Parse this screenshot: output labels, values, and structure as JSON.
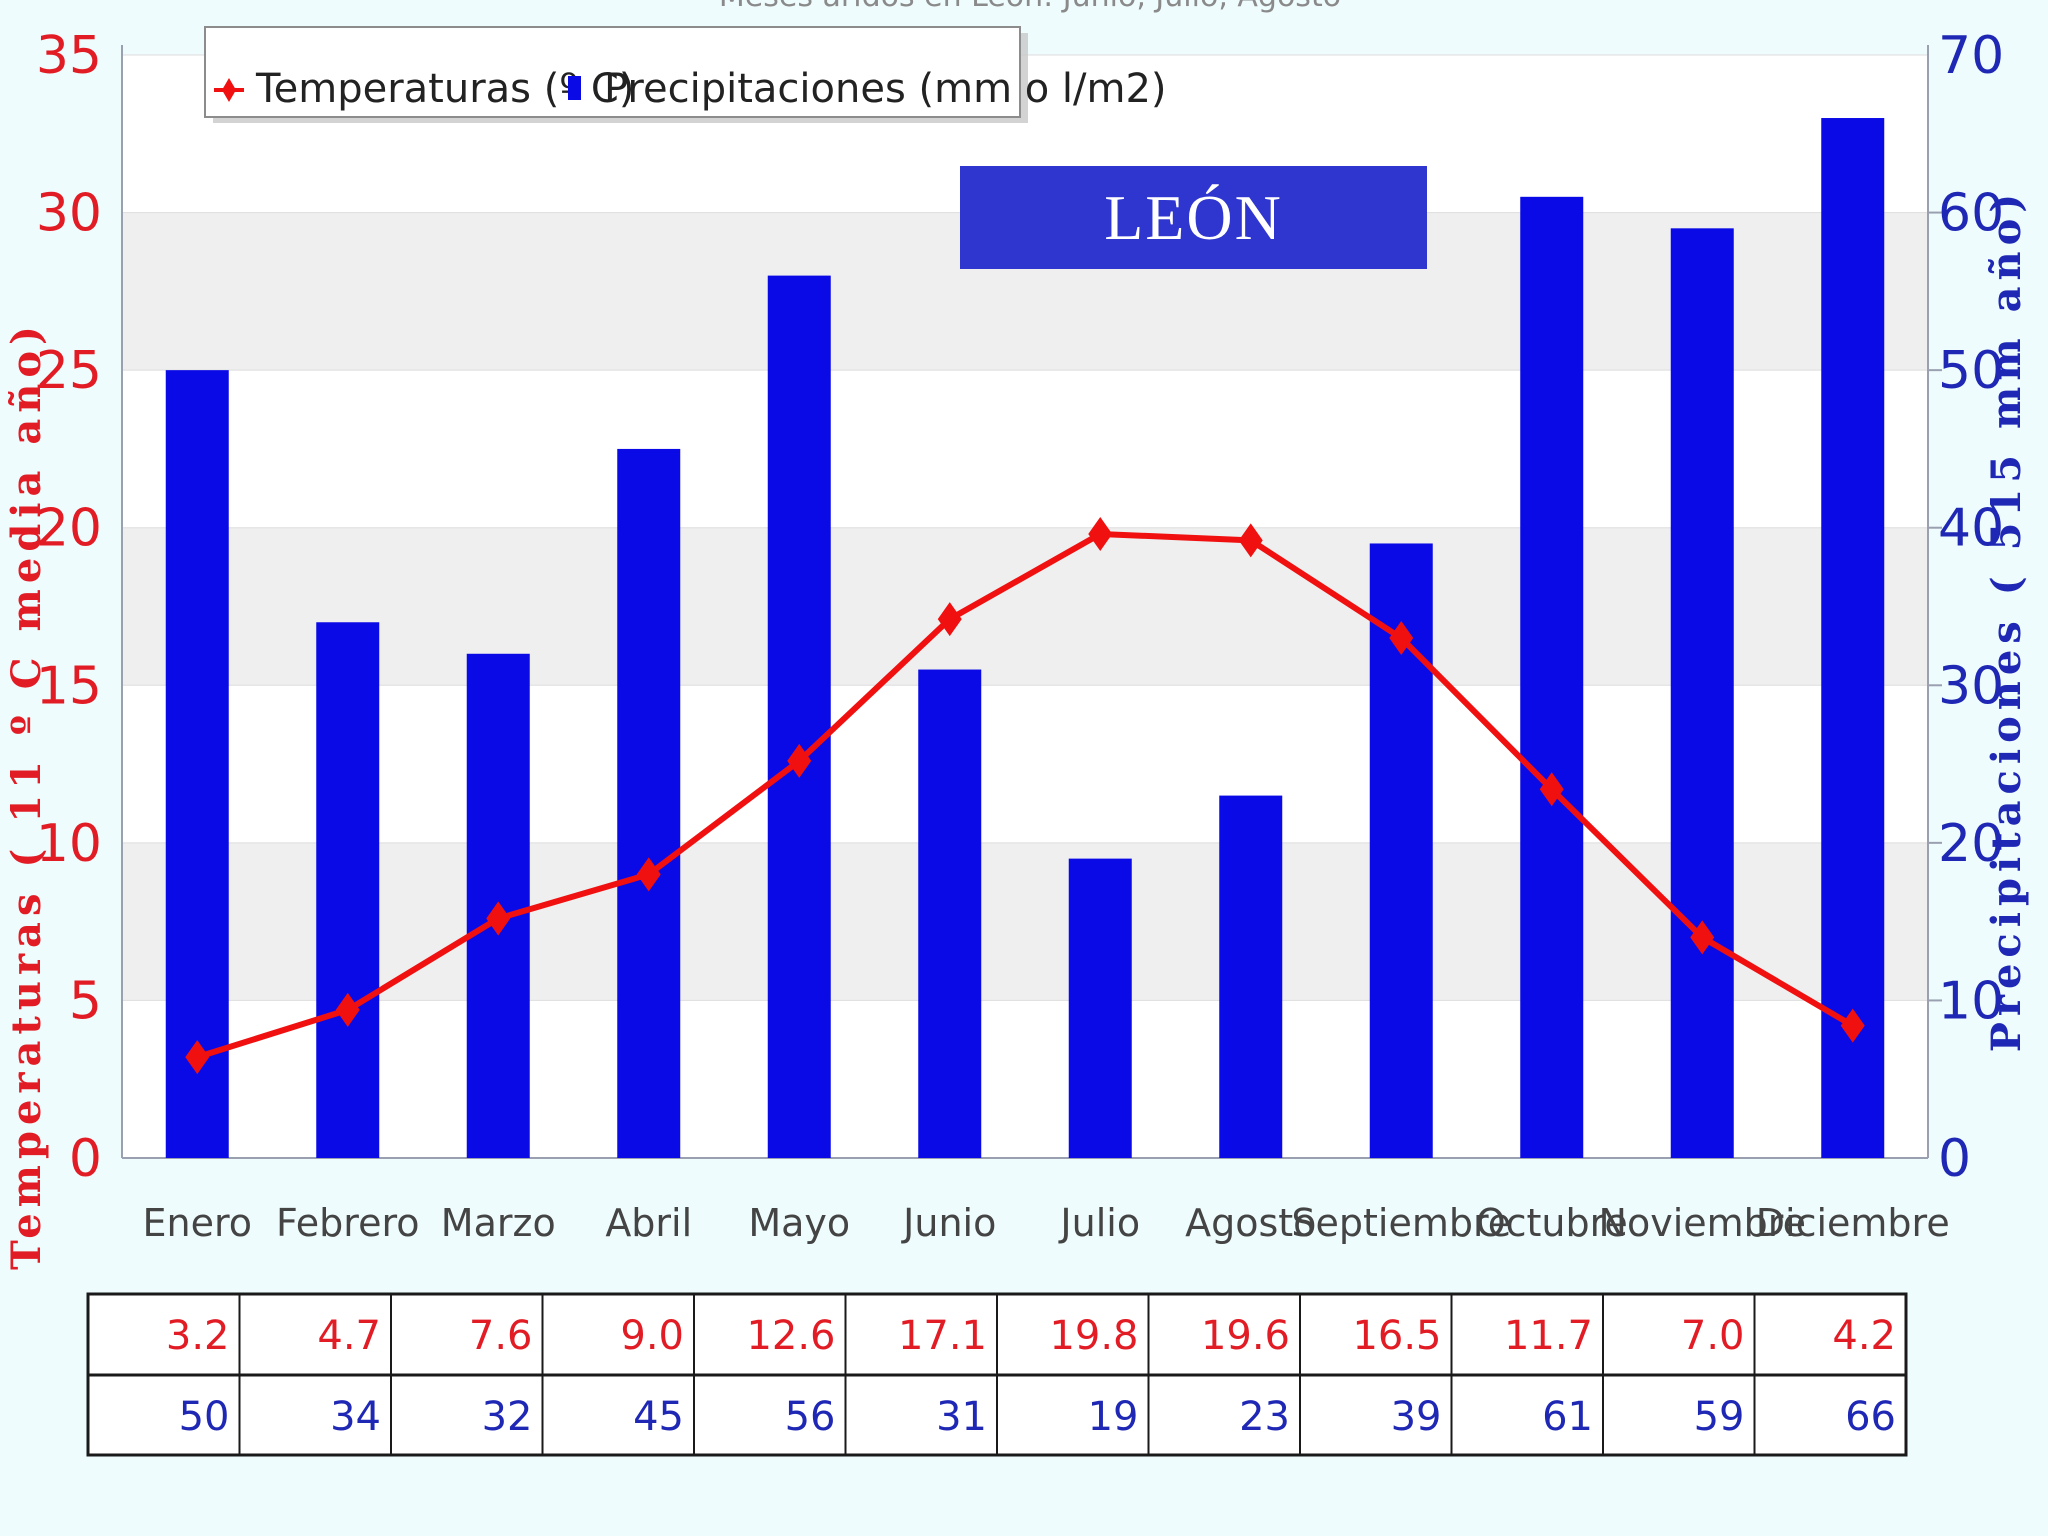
{
  "chart_data": {
    "type": "bar+line",
    "title": "Meses áridos en León: Junio, Julio, Agosto",
    "city_label": "LEÓN",
    "categories": [
      "Enero",
      "Febrero",
      "Marzo",
      "Abril",
      "Mayo",
      "Junio",
      "Julio",
      "Agosto",
      "Septiembre",
      "Octubre",
      "Noviembre",
      "Diciembre"
    ],
    "series": [
      {
        "name": "Temperaturas (º C)",
        "kind": "line",
        "axis": "left",
        "color": "#f01010",
        "values": [
          3.2,
          4.7,
          7.6,
          9.0,
          12.6,
          17.1,
          19.8,
          19.6,
          16.5,
          11.7,
          7.0,
          4.2
        ],
        "table_values": [
          "3.2",
          "4.7",
          "7.6",
          "9.0",
          "12.6",
          "17.1",
          "19.8",
          "19.6",
          "16.5",
          "11.7",
          "7.0",
          "4.2"
        ]
      },
      {
        "name": "Precipitaciones (mm o l/m2)",
        "kind": "bar",
        "axis": "right",
        "color": "#0a0ae6",
        "values": [
          50,
          34,
          32,
          45,
          56,
          31,
          19,
          23,
          39,
          61,
          59,
          66
        ],
        "table_values": [
          "50",
          "34",
          "32",
          "45",
          "56",
          "31",
          "19",
          "23",
          "39",
          "61",
          "59",
          "66"
        ]
      }
    ],
    "y_left": {
      "label": "Temperaturas ( 11 º C media año)",
      "ylim": [
        0,
        35
      ],
      "ticks": [
        "0",
        "5",
        "10",
        "15",
        "20",
        "25",
        "30",
        "35"
      ]
    },
    "y_right": {
      "label": "Precipitaciones ( 515 mm año)",
      "ylim": [
        0,
        70
      ],
      "ticks": [
        "0",
        "10",
        "20",
        "30",
        "40",
        "50",
        "60",
        "70"
      ]
    },
    "legend": {
      "position": "top-left",
      "temp_label": "Temperaturas (º C)",
      "prec_label": "Precipitaciones (mm o l/m2)"
    },
    "colors": {
      "temp_text": "#e21c25",
      "prec_text": "#1f28b4",
      "bar": "#0a0ae6",
      "line": "#f01010"
    }
  }
}
